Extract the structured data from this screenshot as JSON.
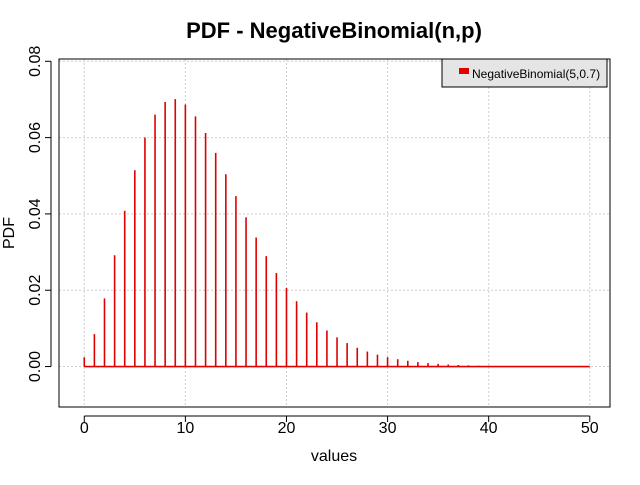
{
  "chart_data": {
    "type": "bar",
    "title": "PDF - NegativeBinomial(n,p)",
    "xlabel": "values",
    "ylabel": "PDF",
    "xlim": [
      -2.5,
      52
    ],
    "ylim": [
      -0.0106,
      0.0806
    ],
    "xticks": [
      0,
      10,
      20,
      30,
      40,
      50
    ],
    "xtick_labels": [
      "0",
      "10",
      "20",
      "30",
      "40",
      "50"
    ],
    "yticks": [
      0.0,
      0.02,
      0.04,
      0.06,
      0.08
    ],
    "ytick_labels": [
      "0.00",
      "0.02",
      "0.04",
      "0.06",
      "0.08"
    ],
    "grid": true,
    "legend_position": "top-right",
    "x": [
      0,
      1,
      2,
      3,
      4,
      5,
      6,
      7,
      8,
      9,
      10,
      11,
      12,
      13,
      14,
      15,
      16,
      17,
      18,
      19,
      20,
      21,
      22,
      23,
      24,
      25,
      26,
      27,
      28,
      29,
      30,
      31,
      32,
      33,
      34,
      35,
      36,
      37,
      38,
      39,
      40,
      41,
      42,
      43,
      44,
      45,
      46,
      47,
      48,
      49,
      50
    ],
    "series": [
      {
        "name": "NegativeBinomial(5,0.7)",
        "color": "#e00000",
        "values": [
          0.00243,
          0.0085,
          0.01786,
          0.02917,
          0.04083,
          0.05145,
          0.06003,
          0.06603,
          0.06933,
          0.0701,
          0.06869,
          0.06557,
          0.0612,
          0.056,
          0.0504,
          0.04468,
          0.0391,
          0.03381,
          0.02893,
          0.02452,
          0.02059,
          0.01713,
          0.01415,
          0.0116,
          0.00945,
          0.00765,
          0.00616,
          0.00493,
          0.00393,
          0.00312,
          0.00246,
          0.00193,
          0.00151,
          0.00118,
          0.00091,
          0.00071,
          0.00054,
          0.00042,
          0.00032,
          0.00024,
          0.00018,
          0.00014,
          0.00011,
          8e-05,
          6e-05,
          5e-05,
          3e-05,
          3e-05,
          2e-05,
          1e-05,
          1e-05
        ]
      }
    ]
  }
}
